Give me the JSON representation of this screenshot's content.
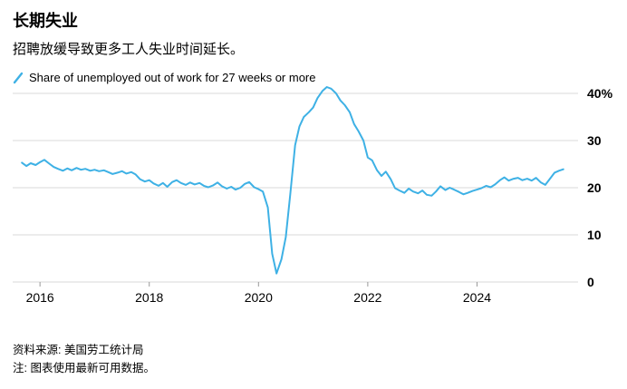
{
  "header": {
    "title": "长期失业",
    "subtitle": "招聘放缓导致更多工人失业时间延长。"
  },
  "legend": {
    "label": "Share of unemployed out of work for 27 weeks or more",
    "color": "#3EB1E5"
  },
  "footer": {
    "source": "资料来源: 美国劳工统计局",
    "note": "注: 图表使用最新可用数据。"
  },
  "chart_data": {
    "type": "line",
    "title": "长期失业",
    "subtitle": "招聘放缓导致更多工人失业时间延长。",
    "xlabel": "",
    "ylabel": "",
    "xlim": [
      2015.5,
      2025.85
    ],
    "ylim": [
      0,
      40
    ],
    "grid": "horizontal",
    "grid_color": "#d9d9d9",
    "legend_position": "top-left",
    "x_ticks": [
      2016,
      2018,
      2020,
      2022,
      2024
    ],
    "y_ticks": [
      {
        "value": 40,
        "label": "40%"
      },
      {
        "value": 30,
        "label": "30"
      },
      {
        "value": 20,
        "label": "20"
      },
      {
        "value": 10,
        "label": "10"
      },
      {
        "value": 0,
        "label": "0"
      }
    ],
    "series": [
      {
        "name": "Share of unemployed out of work for 27 weeks or more",
        "color": "#3EB1E5",
        "x": [
          2015.67,
          2015.75,
          2015.83,
          2015.92,
          2016.0,
          2016.08,
          2016.17,
          2016.25,
          2016.33,
          2016.42,
          2016.5,
          2016.58,
          2016.67,
          2016.75,
          2016.83,
          2016.92,
          2017.0,
          2017.08,
          2017.17,
          2017.25,
          2017.33,
          2017.42,
          2017.5,
          2017.58,
          2017.67,
          2017.75,
          2017.83,
          2017.92,
          2018.0,
          2018.08,
          2018.17,
          2018.25,
          2018.33,
          2018.42,
          2018.5,
          2018.58,
          2018.67,
          2018.75,
          2018.83,
          2018.92,
          2019.0,
          2019.08,
          2019.17,
          2019.25,
          2019.33,
          2019.42,
          2019.5,
          2019.58,
          2019.67,
          2019.75,
          2019.83,
          2019.92,
          2020.0,
          2020.08,
          2020.17,
          2020.25,
          2020.33,
          2020.42,
          2020.5,
          2020.58,
          2020.67,
          2020.75,
          2020.83,
          2020.92,
          2021.0,
          2021.08,
          2021.17,
          2021.25,
          2021.33,
          2021.42,
          2021.5,
          2021.58,
          2021.67,
          2021.75,
          2021.83,
          2021.92,
          2022.0,
          2022.08,
          2022.17,
          2022.25,
          2022.33,
          2022.42,
          2022.5,
          2022.58,
          2022.67,
          2022.75,
          2022.83,
          2022.92,
          2023.0,
          2023.08,
          2023.17,
          2023.25,
          2023.33,
          2023.42,
          2023.5,
          2023.58,
          2023.67,
          2023.75,
          2023.83,
          2023.92,
          2024.0,
          2024.08,
          2024.17,
          2024.25,
          2024.33,
          2024.42,
          2024.5,
          2024.58,
          2024.67,
          2024.75,
          2024.83,
          2024.92,
          2025.0,
          2025.08,
          2025.17,
          2025.25,
          2025.33,
          2025.42,
          2025.5,
          2025.58
        ],
        "y": [
          25.3,
          24.6,
          25.2,
          24.8,
          25.4,
          25.9,
          25.1,
          24.4,
          24.0,
          23.6,
          24.1,
          23.7,
          24.2,
          23.8,
          24.0,
          23.6,
          23.8,
          23.5,
          23.7,
          23.3,
          22.9,
          23.2,
          23.5,
          23.0,
          23.3,
          22.8,
          21.8,
          21.3,
          21.6,
          20.9,
          20.4,
          21.0,
          20.2,
          21.2,
          21.6,
          21.0,
          20.6,
          21.1,
          20.7,
          21.0,
          20.4,
          20.1,
          20.5,
          21.1,
          20.3,
          19.8,
          20.2,
          19.6,
          20.0,
          20.8,
          21.2,
          20.1,
          19.7,
          19.2,
          15.8,
          6.0,
          1.8,
          4.8,
          9.5,
          18.5,
          29.0,
          33.0,
          35.0,
          36.0,
          37.0,
          39.0,
          40.5,
          41.5,
          41.0,
          40.0,
          38.5,
          37.5,
          36.0,
          33.5,
          32.0,
          30.0,
          26.4,
          25.8,
          23.7,
          22.5,
          23.4,
          21.8,
          19.9,
          19.4,
          18.9,
          19.8,
          19.2,
          18.8,
          19.4,
          18.5,
          18.3,
          19.2,
          20.3,
          19.5,
          20.0,
          19.6,
          19.1,
          18.6,
          18.9,
          19.3,
          19.6,
          19.9,
          20.4,
          20.1,
          20.7,
          21.6,
          22.2,
          21.5,
          21.9,
          22.1,
          21.6,
          21.9,
          21.5,
          22.1,
          21.1,
          20.6,
          21.8,
          23.2,
          23.6,
          23.9
        ]
      }
    ]
  }
}
